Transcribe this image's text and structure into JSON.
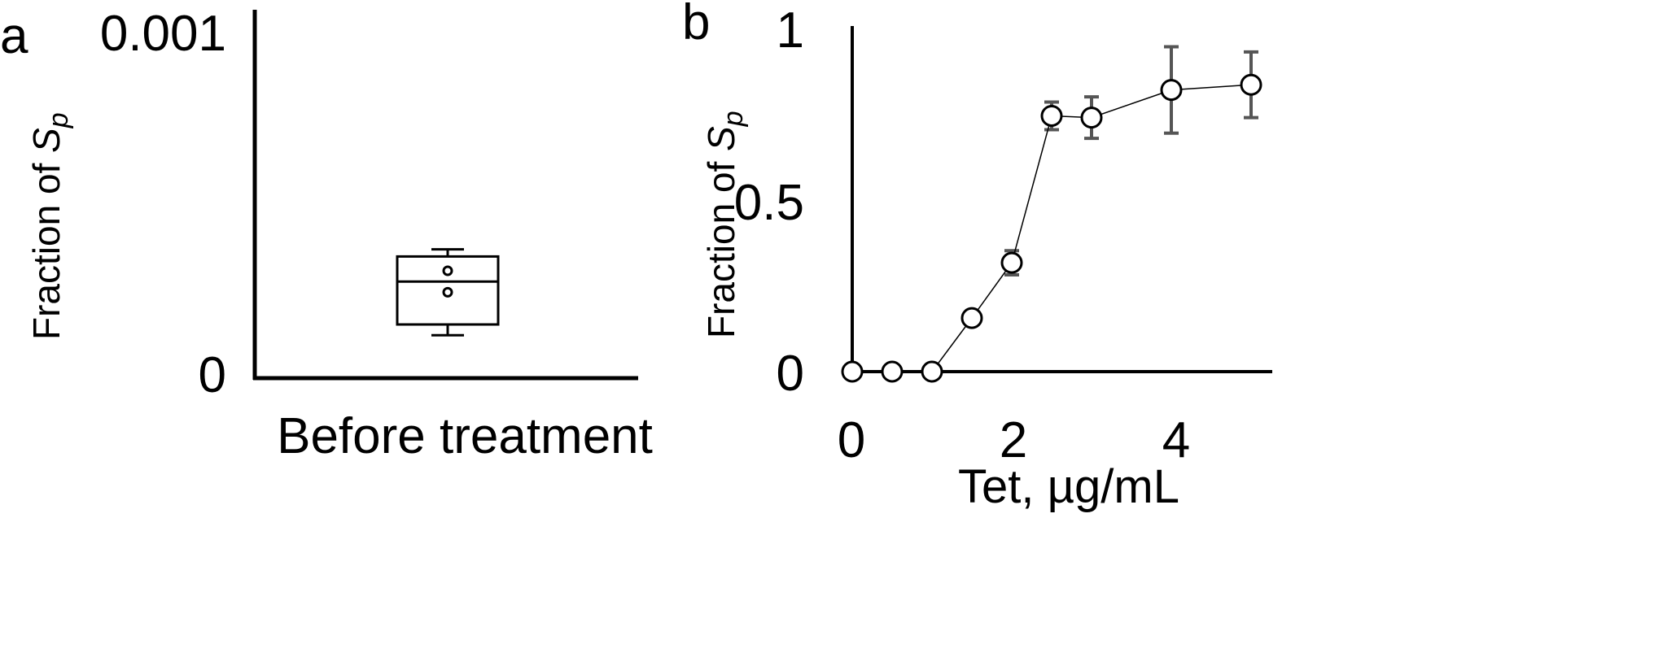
{
  "chart_data": [
    {
      "panel": "a",
      "type": "box",
      "ylabel": "Fraction of ",
      "ylabel_sub": "p",
      "ylabel_main": "S",
      "ylim": [
        0,
        0.001
      ],
      "yticks": [
        "0",
        "0.001"
      ],
      "categories": [
        "Before treatment"
      ],
      "box": {
        "whisker_low": 0.00012,
        "q1": 0.00015,
        "median": 0.00027,
        "q3": 0.00034,
        "whisker_high": 0.00036,
        "points": [
          0.00024,
          0.0003
        ]
      }
    },
    {
      "panel": "b",
      "type": "line",
      "ylabel": "Fraction of ",
      "ylabel_main": "S",
      "ylabel_sub": "p",
      "xlabel": "Tet, µg/mL",
      "xlim": [
        0,
        5
      ],
      "ylim": [
        0,
        1
      ],
      "xticks": [
        "0",
        "2",
        "4"
      ],
      "yticks": [
        "0",
        "0.5",
        "1"
      ],
      "x": [
        0,
        0.5,
        1,
        1.5,
        2,
        2.5,
        3,
        4,
        5
      ],
      "y": [
        0,
        0,
        0,
        0.155,
        0.315,
        0.74,
        0.735,
        0.815,
        0.83
      ],
      "err": [
        0,
        0,
        0,
        0,
        0.035,
        0.04,
        0.06,
        0.125,
        0.095
      ]
    }
  ],
  "colors": {
    "axis": "#000000",
    "marker": "#000000",
    "errorbar": "#555555"
  }
}
